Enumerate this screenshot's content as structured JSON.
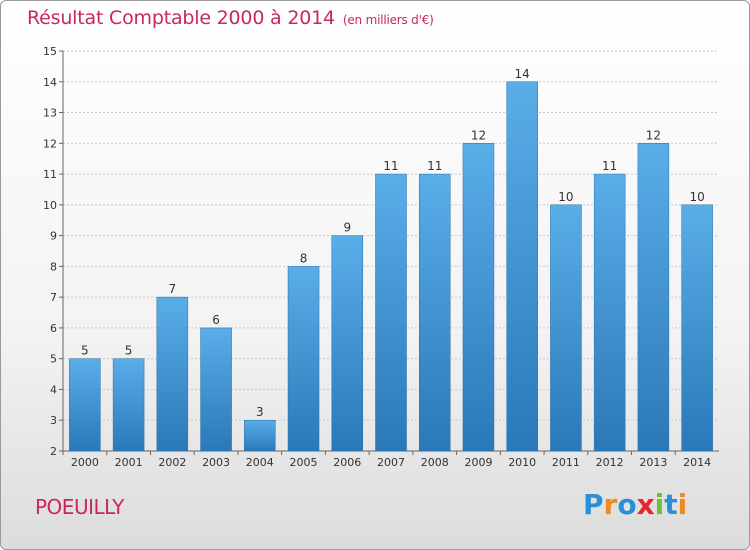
{
  "header": {
    "title": "Résultat Comptable 2000 à 2014",
    "unit": "(en milliers d'€)"
  },
  "footer": {
    "city": "POEUILLY",
    "logo_letters": [
      {
        "ch": "P",
        "color": "#2a8fd6"
      },
      {
        "ch": "r",
        "color": "#f08a1c"
      },
      {
        "ch": "o",
        "color": "#2a8fd6"
      },
      {
        "ch": "x",
        "color": "#e8262f"
      },
      {
        "ch": "i",
        "color": "#6cbf3a"
      },
      {
        "ch": "t",
        "color": "#2a8fd6"
      },
      {
        "ch": "i",
        "color": "#f08a1c"
      }
    ]
  },
  "chart_data": {
    "type": "bar",
    "title": "Résultat Comptable 2000 à 2014",
    "subtitle": "(en milliers d'€)",
    "xlabel": "",
    "ylabel": "",
    "categories": [
      "2000",
      "2001",
      "2002",
      "2003",
      "2004",
      "2005",
      "2006",
      "2007",
      "2008",
      "2009",
      "2010",
      "2011",
      "2012",
      "2013",
      "2014"
    ],
    "values": [
      5,
      5,
      7,
      6,
      3,
      8,
      9,
      11,
      11,
      12,
      14,
      10,
      11,
      12,
      10
    ],
    "ylim": [
      2,
      15
    ],
    "yticks": [
      2,
      3,
      4,
      5,
      6,
      7,
      8,
      9,
      10,
      11,
      12,
      13,
      14,
      15
    ],
    "grid": true,
    "bar_color_top": "#5aaee8",
    "bar_color_bottom": "#2a78b8"
  }
}
